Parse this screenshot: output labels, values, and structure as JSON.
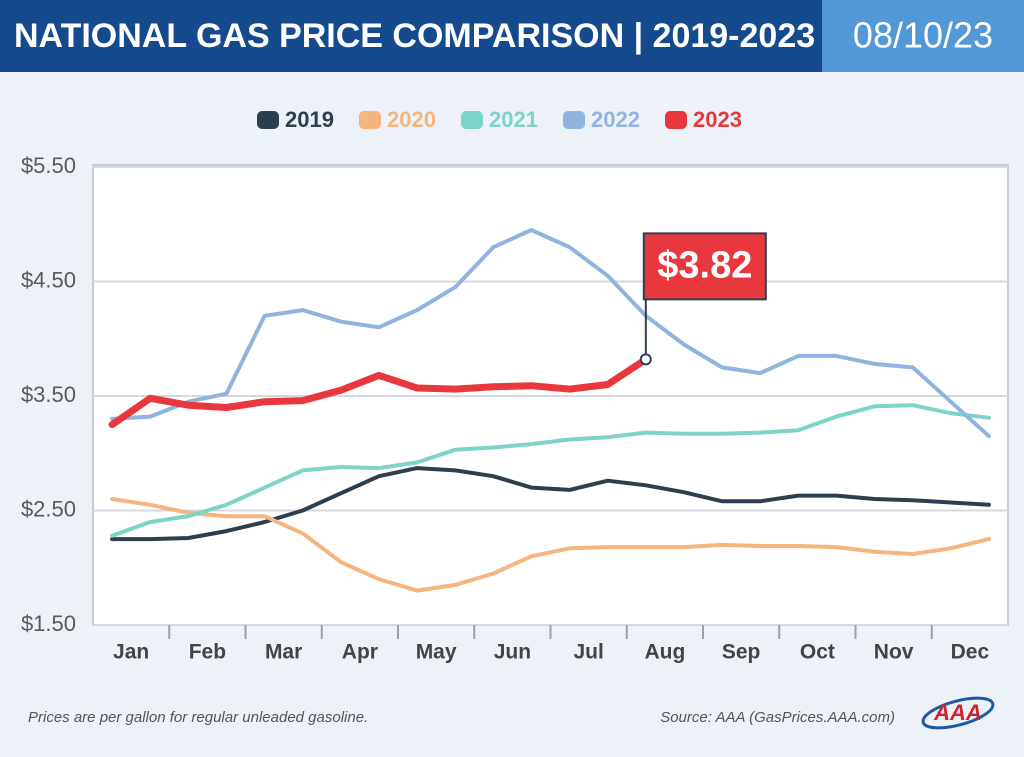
{
  "chart_data": {
    "type": "line",
    "title": "NATIONAL GAS PRICE COMPARISON | 2019-2023",
    "date": "08/10/23",
    "note": "Prices are per gallon for regular unleaded gasoline.",
    "source": "Source: AAA (GasPrices.AAA.com)",
    "logo": "AAA",
    "categories": [
      "Jan",
      null,
      "Feb",
      null,
      "Mar",
      null,
      "Apr",
      null,
      "May",
      null,
      "Jun",
      null,
      "Jul",
      null,
      "Aug",
      null,
      "Sep",
      null,
      "Oct",
      null,
      "Nov",
      null,
      "Dec",
      null
    ],
    "ylim": [
      1.5,
      5.5
    ],
    "yticks": [
      {
        "value": 1.5,
        "label": "$1.50"
      },
      {
        "value": 2.5,
        "label": "$2.50"
      },
      {
        "value": 3.5,
        "label": "$3.50"
      },
      {
        "value": 4.5,
        "label": "$4.50"
      },
      {
        "value": 5.5,
        "label": "$5.50"
      }
    ],
    "grid": true,
    "legend": "top",
    "series": [
      {
        "name": "2019",
        "color": "#2d3e4e",
        "values": [
          2.25,
          2.25,
          2.26,
          2.32,
          2.4,
          2.5,
          2.65,
          2.8,
          2.87,
          2.85,
          2.8,
          2.7,
          2.68,
          2.76,
          2.72,
          2.66,
          2.58,
          2.58,
          2.63,
          2.63,
          2.6,
          2.59,
          2.57,
          2.55
        ]
      },
      {
        "name": "2020",
        "color": "#f5b57f",
        "values": [
          2.6,
          2.55,
          2.48,
          2.45,
          2.45,
          2.3,
          2.05,
          1.9,
          1.8,
          1.85,
          1.95,
          2.1,
          2.17,
          2.18,
          2.18,
          2.18,
          2.2,
          2.19,
          2.19,
          2.18,
          2.14,
          2.12,
          2.17,
          2.25
        ]
      },
      {
        "name": "2021",
        "color": "#7ed3c8",
        "values": [
          2.28,
          2.4,
          2.45,
          2.55,
          2.7,
          2.85,
          2.88,
          2.87,
          2.92,
          3.03,
          3.05,
          3.08,
          3.12,
          3.14,
          3.18,
          3.17,
          3.17,
          3.18,
          3.2,
          3.32,
          3.41,
          3.42,
          3.35,
          3.31
        ]
      },
      {
        "name": "2022",
        "color": "#8fb4e0",
        "values": [
          3.3,
          3.32,
          3.45,
          3.52,
          4.2,
          4.25,
          4.15,
          4.1,
          4.25,
          4.45,
          4.8,
          4.95,
          4.8,
          4.55,
          4.2,
          3.95,
          3.75,
          3.7,
          3.85,
          3.85,
          3.78,
          3.75,
          3.45,
          3.15
        ]
      },
      {
        "name": "2023",
        "color": "#e8383d",
        "values": [
          3.25,
          3.48,
          3.42,
          3.4,
          3.45,
          3.46,
          3.55,
          3.68,
          3.57,
          3.56,
          3.58,
          3.59,
          3.56,
          3.6,
          3.82,
          null,
          null,
          null,
          null,
          null,
          null,
          null,
          null,
          null
        ],
        "value_labels": [
          null,
          null,
          null,
          null,
          null,
          null,
          null,
          null,
          null,
          null,
          null,
          null,
          null,
          null,
          "$3.82",
          null,
          null,
          null,
          null,
          null,
          null,
          null,
          null,
          null
        ]
      }
    ]
  }
}
